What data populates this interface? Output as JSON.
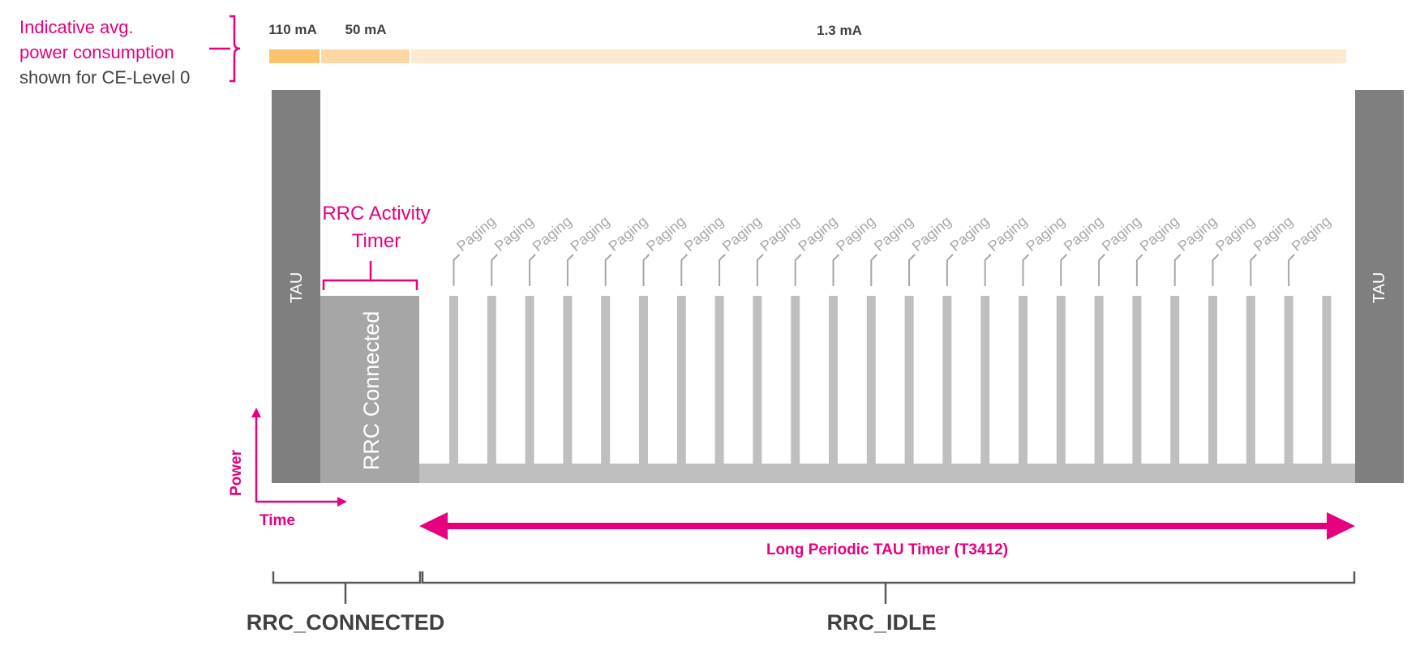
{
  "legend": {
    "line1": "Indicative avg.",
    "line2": "power consumption",
    "line3": "shown for CE-Level 0"
  },
  "consumption": {
    "tau_current": "110 mA",
    "connected_current": "50 mA",
    "idle_current": "1.3 mA"
  },
  "blocks": {
    "tau_left": "TAU",
    "tau_right": "TAU",
    "rrc_connected": "RRC Connected"
  },
  "rrc_activity_timer": {
    "line1": "RRC Activity",
    "line2": "Timer"
  },
  "paging": {
    "label": "Paging",
    "count": 24
  },
  "axes": {
    "y_label": "Power",
    "x_label": "Time"
  },
  "tau_timer_label": "Long Periodic TAU Timer (T3412)",
  "states": {
    "connected": "RRC_CONNECTED",
    "idle": "RRC_IDLE"
  },
  "colors": {
    "accent": "#e6007e",
    "tau_block": "#7f7f7f",
    "connected_block": "#a6a6a6",
    "idle_bar": "#bfbfbf",
    "paging_text": "#a6a6a6",
    "bracket": "#595959",
    "orange_high": "#fbc46c",
    "orange_mid": "#fdd8a5",
    "orange_low": "#fde9d0",
    "state_text": "#404040"
  }
}
